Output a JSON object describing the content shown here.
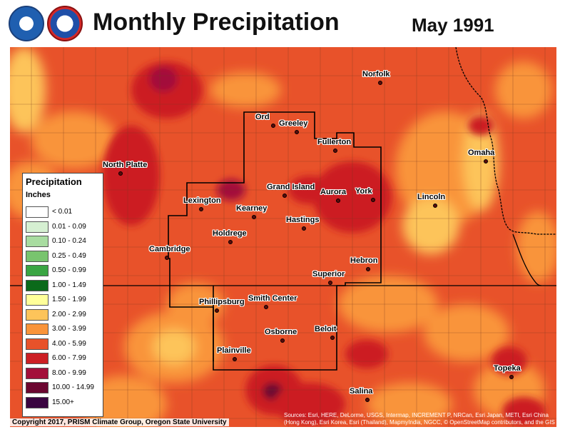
{
  "header": {
    "title": "Monthly Precipitation",
    "subtitle": "May 1991",
    "logos": [
      "noaa-logo",
      "national-weather-service-logo"
    ]
  },
  "legend": {
    "title": "Precipitation",
    "units": "Inches",
    "classes": [
      {
        "label": "< 0.01",
        "color": "#ffffff"
      },
      {
        "label": "0.01 - 0.09",
        "color": "#d6f0d2"
      },
      {
        "label": "0.10 - 0.24",
        "color": "#a8dca0"
      },
      {
        "label": "0.25 - 0.49",
        "color": "#78c46e"
      },
      {
        "label": "0.50 - 0.99",
        "color": "#3aa543"
      },
      {
        "label": "1.00 - 1.49",
        "color": "#0b6a1a"
      },
      {
        "label": "1.50 - 1.99",
        "color": "#ffff99"
      },
      {
        "label": "2.00 - 2.99",
        "color": "#fdc45a"
      },
      {
        "label": "3.00 - 3.99",
        "color": "#f9943a"
      },
      {
        "label": "4.00 - 5.99",
        "color": "#e8522a"
      },
      {
        "label": "6.00 - 7.99",
        "color": "#cc1f24"
      },
      {
        "label": "8.00 - 9.99",
        "color": "#a30f3a"
      },
      {
        "label": "10.00 - 14.99",
        "color": "#6b0730"
      },
      {
        "label": "15.00+",
        "color": "#3a0440"
      }
    ]
  },
  "cities": [
    {
      "name": "Norfolk"
    },
    {
      "name": "Ord"
    },
    {
      "name": "Greeley"
    },
    {
      "name": "Fullerton"
    },
    {
      "name": "Omaha"
    },
    {
      "name": "North Platte"
    },
    {
      "name": "Grand Island"
    },
    {
      "name": "Aurora"
    },
    {
      "name": "York"
    },
    {
      "name": "Lincoln"
    },
    {
      "name": "Lexington"
    },
    {
      "name": "Kearney"
    },
    {
      "name": "Hastings"
    },
    {
      "name": "Holdrege"
    },
    {
      "name": "Cambridge"
    },
    {
      "name": "Hebron"
    },
    {
      "name": "Superior"
    },
    {
      "name": "Phillipsburg"
    },
    {
      "name": "Smith Center"
    },
    {
      "name": "Beloit"
    },
    {
      "name": "Osborne"
    },
    {
      "name": "Plainville"
    },
    {
      "name": "Topeka"
    },
    {
      "name": "Salina"
    }
  ],
  "footer": {
    "copyright": "Copyright 2017, PRISM Climate Group, Oregon State University",
    "attribution": "Sources: Esri, HERE, DeLorme, USGS, Intermap, INCREMENT P, NRCan, Esri Japan, METI, Esri China (Hong Kong), Esri Korea, Esri (Thailand), MapmyIndia, NGCC, © OpenStreetMap contributors, and the GIS User Community"
  }
}
